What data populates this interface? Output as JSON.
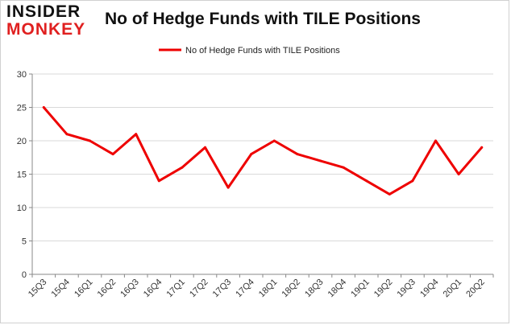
{
  "logo": {
    "line1": "INSIDER",
    "line2": "MONKEY"
  },
  "colors": {
    "series": "#ee0000",
    "grid": "#d9d9d9",
    "axis": "#888888",
    "logo_accent": "#e02020"
  },
  "chart_data": {
    "type": "line",
    "title": "No of Hedge Funds with TILE Positions",
    "xlabel": "",
    "ylabel": "",
    "legend_position": "top-center",
    "grid": true,
    "ylim": [
      0,
      30
    ],
    "yticks": [
      0,
      5,
      10,
      15,
      20,
      25,
      30
    ],
    "categories": [
      "15Q3",
      "15Q4",
      "16Q1",
      "16Q2",
      "16Q3",
      "16Q4",
      "17Q1",
      "17Q2",
      "17Q3",
      "17Q4",
      "18Q1",
      "18Q2",
      "18Q3",
      "18Q4",
      "19Q1",
      "19Q2",
      "19Q3",
      "19Q4",
      "20Q1",
      "20Q2"
    ],
    "series": [
      {
        "name": "No of Hedge Funds with TILE Positions",
        "values": [
          25,
          21,
          20,
          18,
          21,
          14,
          16,
          19,
          13,
          18,
          20,
          18,
          17,
          16,
          14,
          12,
          14,
          20,
          15,
          19
        ]
      }
    ]
  }
}
